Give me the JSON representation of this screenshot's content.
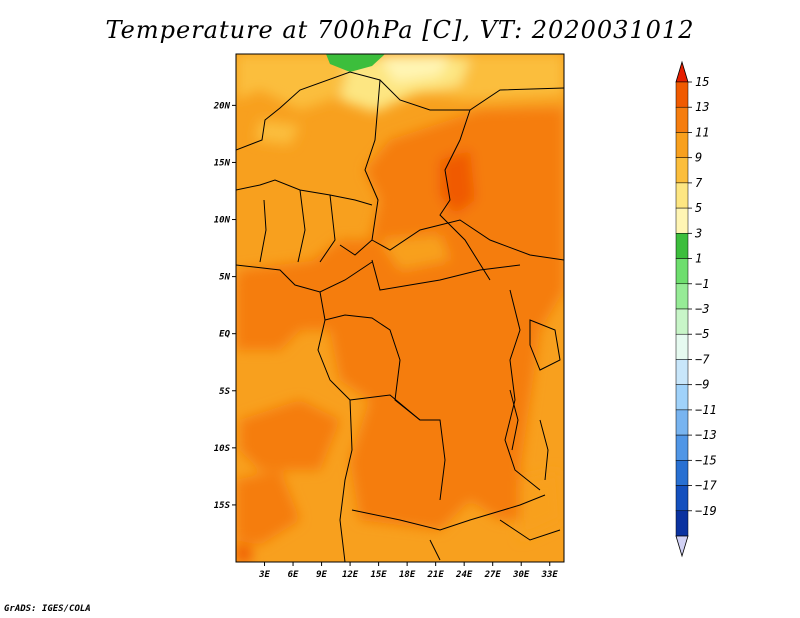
{
  "title": "Temperature at 700hPa [C], VT: 2020031012",
  "credit": "GrADS: IGES/COLA",
  "map": {
    "projection": "lat-lon",
    "lon_range": [
      0,
      34.5
    ],
    "lat_range": [
      -20,
      24.5
    ],
    "lon_ticks": [
      {
        "value": 3,
        "label": "3E"
      },
      {
        "value": 6,
        "label": "6E"
      },
      {
        "value": 9,
        "label": "9E"
      },
      {
        "value": 12,
        "label": "12E"
      },
      {
        "value": 15,
        "label": "15E"
      },
      {
        "value": 18,
        "label": "18E"
      },
      {
        "value": 21,
        "label": "21E"
      },
      {
        "value": 24,
        "label": "24E"
      },
      {
        "value": 27,
        "label": "27E"
      },
      {
        "value": 30,
        "label": "30E"
      },
      {
        "value": 33,
        "label": "33E"
      }
    ],
    "lat_ticks": [
      {
        "value": 20,
        "label": "20N"
      },
      {
        "value": 15,
        "label": "15N"
      },
      {
        "value": 10,
        "label": "10N"
      },
      {
        "value": 5,
        "label": "5N"
      },
      {
        "value": 0,
        "label": "EQ"
      },
      {
        "value": -5,
        "label": "5S"
      },
      {
        "value": -10,
        "label": "10S"
      },
      {
        "value": -15,
        "label": "15S"
      }
    ],
    "field": "temperature_700hPa",
    "units": "C"
  },
  "colorbar": {
    "levels": [
      15,
      13,
      11,
      9,
      7,
      5,
      3,
      1,
      -1,
      -3,
      -5,
      -7,
      -9,
      -11,
      -13,
      -15,
      -17,
      -19
    ],
    "labels": [
      "15",
      "13",
      "11",
      "9",
      "7",
      "5",
      "3",
      "1",
      "−1",
      "−3",
      "−5",
      "−7",
      "−9",
      "−11",
      "−13",
      "−15",
      "−17",
      "−19"
    ],
    "colors": [
      "#e61e00",
      "#f05a00",
      "#f57d0f",
      "#f8a01e",
      "#fbbe3c",
      "#fde682",
      "#fff5b4",
      "#3cbe3c",
      "#6ede6e",
      "#96eb96",
      "#c8f5c8",
      "#e6faf0",
      "#c8e6fa",
      "#a0d2fa",
      "#78b4f0",
      "#5096e6",
      "#2870d2",
      "#1450be",
      "#0a32a0",
      "#0a1478"
    ]
  }
}
